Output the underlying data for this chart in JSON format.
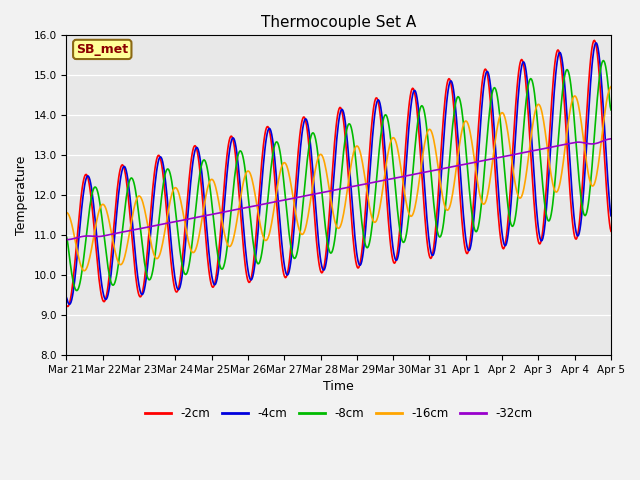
{
  "title": "Thermocouple Set A",
  "xlabel": "Time",
  "ylabel": "Temperature",
  "ylim": [
    8.0,
    16.0
  ],
  "yticks": [
    8.0,
    9.0,
    10.0,
    11.0,
    12.0,
    13.0,
    14.0,
    15.0,
    16.0
  ],
  "annotation_text": "SB_met",
  "annotation_color": "#8B0000",
  "annotation_bg": "#FFFF99",
  "annotation_border": "#8B6914",
  "bg_color": "#E8E8E8",
  "fig_color": "#F2F2F2",
  "lines": [
    {
      "label": "-2cm",
      "color": "#FF0000",
      "lw": 1.2
    },
    {
      "label": "-4cm",
      "color": "#0000DD",
      "lw": 1.2
    },
    {
      "label": "-8cm",
      "color": "#00BB00",
      "lw": 1.2
    },
    {
      "label": "-16cm",
      "color": "#FFA500",
      "lw": 1.2
    },
    {
      "label": "-32cm",
      "color": "#9900CC",
      "lw": 1.2
    }
  ],
  "date_labels": [
    "Mar 21",
    "Mar 22",
    "Mar 23",
    "Mar 24",
    "Mar 25",
    "Mar 26",
    "Mar 27",
    "Mar 28",
    "Mar 29",
    "Mar 30",
    "Mar 31",
    "Apr 1",
    "Apr 2",
    "Apr 3",
    "Apr 4",
    "Apr 5"
  ],
  "grid_color": "#FFFFFF",
  "tick_fontsize": 7.5
}
